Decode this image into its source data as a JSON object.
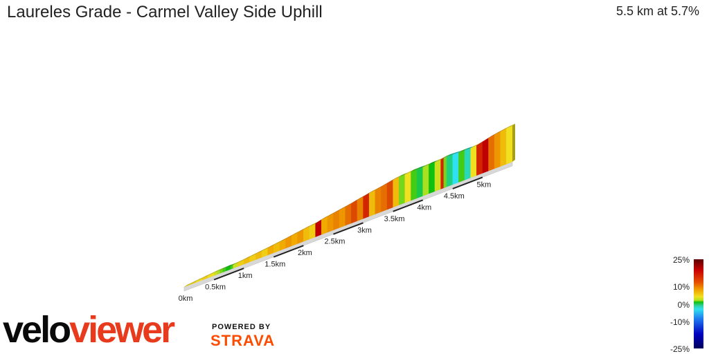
{
  "chart_data": {
    "type": "area",
    "title": "Laureles Grade - Carmel Valley Side Uphill",
    "summary": "5.5 km at 5.7%",
    "x_ticks": [
      "0km",
      "0.5km",
      "1km",
      "1.5km",
      "2km",
      "2.5km",
      "3km",
      "3.5km",
      "4km",
      "4.5km",
      "5km"
    ],
    "x_unit": "km",
    "xlim": [
      0,
      5.5
    ],
    "segments": [
      {
        "d": 0.0,
        "g": 5
      },
      {
        "d": 0.1,
        "g": 6
      },
      {
        "d": 0.2,
        "g": 5
      },
      {
        "d": 0.3,
        "g": 6
      },
      {
        "d": 0.4,
        "g": 5
      },
      {
        "d": 0.5,
        "g": 4
      },
      {
        "d": 0.55,
        "g": 3
      },
      {
        "d": 0.6,
        "g": 2
      },
      {
        "d": 0.65,
        "g": 1
      },
      {
        "d": 0.7,
        "g": 0
      },
      {
        "d": 0.78,
        "g": 1
      },
      {
        "d": 0.82,
        "g": 4
      },
      {
        "d": 0.9,
        "g": 6
      },
      {
        "d": 1.0,
        "g": 7
      },
      {
        "d": 1.1,
        "g": 6
      },
      {
        "d": 1.2,
        "g": 7
      },
      {
        "d": 1.3,
        "g": 6
      },
      {
        "d": 1.4,
        "g": 8
      },
      {
        "d": 1.5,
        "g": 7
      },
      {
        "d": 1.6,
        "g": 8
      },
      {
        "d": 1.7,
        "g": 9
      },
      {
        "d": 1.8,
        "g": 8
      },
      {
        "d": 1.9,
        "g": 9
      },
      {
        "d": 2.0,
        "g": 7
      },
      {
        "d": 2.1,
        "g": 6
      },
      {
        "d": 2.2,
        "g": 15
      },
      {
        "d": 2.3,
        "g": 8
      },
      {
        "d": 2.4,
        "g": 9
      },
      {
        "d": 2.5,
        "g": 10
      },
      {
        "d": 2.6,
        "g": 9
      },
      {
        "d": 2.7,
        "g": 11
      },
      {
        "d": 2.8,
        "g": 12
      },
      {
        "d": 2.9,
        "g": 10
      },
      {
        "d": 3.0,
        "g": 13
      },
      {
        "d": 3.1,
        "g": 7
      },
      {
        "d": 3.2,
        "g": 10
      },
      {
        "d": 3.3,
        "g": 11
      },
      {
        "d": 3.4,
        "g": 12
      },
      {
        "d": 3.5,
        "g": 7
      },
      {
        "d": 3.6,
        "g": 2
      },
      {
        "d": 3.7,
        "g": 5
      },
      {
        "d": 3.8,
        "g": 1
      },
      {
        "d": 3.9,
        "g": -1
      },
      {
        "d": 4.0,
        "g": 3
      },
      {
        "d": 4.1,
        "g": 0
      },
      {
        "d": 4.2,
        "g": 4
      },
      {
        "d": 4.3,
        "g": 13
      },
      {
        "d": 4.35,
        "g": 2
      },
      {
        "d": 4.4,
        "g": -2
      },
      {
        "d": 4.5,
        "g": -4
      },
      {
        "d": 4.6,
        "g": 1
      },
      {
        "d": 4.7,
        "g": -3
      },
      {
        "d": 4.8,
        "g": 5
      },
      {
        "d": 4.9,
        "g": 13
      },
      {
        "d": 5.0,
        "g": 15
      },
      {
        "d": 5.1,
        "g": 11
      },
      {
        "d": 5.2,
        "g": 9
      },
      {
        "d": 5.3,
        "g": 7
      },
      {
        "d": 5.4,
        "g": 5
      }
    ],
    "colorbar": {
      "labels": [
        "25%",
        "10%",
        "0%",
        "-10%",
        "-25%"
      ],
      "range": [
        -25,
        25
      ]
    }
  },
  "branding": {
    "velo": "velo",
    "viewer": "viewer",
    "powered_by": "POWERED BY",
    "strava": "STRAVA"
  }
}
